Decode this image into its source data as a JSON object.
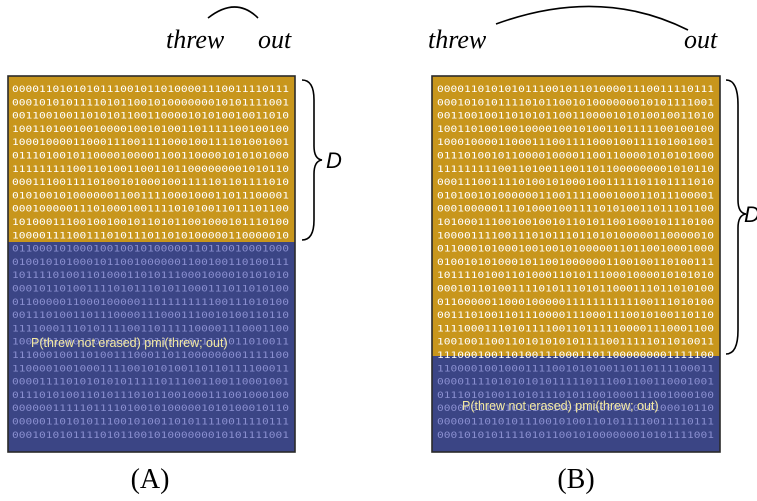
{
  "colors": {
    "gold": "#c8961c",
    "blue": "#3b4585",
    "border": "#2a2a2a"
  },
  "words": {
    "left": "threw",
    "right": "out"
  },
  "dataset_label": "D",
  "pmi_label": "P(threw not erased) pmi(threw; out)",
  "panels": [
    {
      "caption": "(A)"
    },
    {
      "caption": "(B)"
    }
  ],
  "bit_rows": [
    "00001101010101110010110100001110011110111",
    "00010101011110101100101000000010101111001",
    "00110010011010101100110000101010010011010",
    "10011010010010000100101001101111100100100",
    "10001000011000111001111000100111101001001",
    "01110100101100001000011001100001010101000",
    "11111111100110100110011011000000001010110",
    "00011100111101001010001001111101101111010",
    "01010010100000011001111000100011011100001",
    "00010000011101000100111101010011011101100",
    "10100011100100100101101011001000101110100",
    "10000111100111010111011010100000110000010",
    "01100010100010010010100000110110010001000",
    "01001010100010110010000001100100110100111",
    "10111101001101000110101110001000010101010",
    "00010110100111101011101011000111011010100",
    "01100000110001000001111111111100111010100",
    "00111010011011100001110001110010100110110",
    "11110001110101111001101111100001110001100",
    "10010011001101010101011110011111011010011",
    "11100010011010011100011011000000001111100",
    "11000010010001111001010100110110111100011",
    "00001111010101010111110111001100110001001",
    "01110101001101011101011001000111001000100",
    "00000011111011110100101000001010100010110",
    "00000110101011100101001101011110011110111",
    "00010101011110101100101000000010101111001"
  ]
}
